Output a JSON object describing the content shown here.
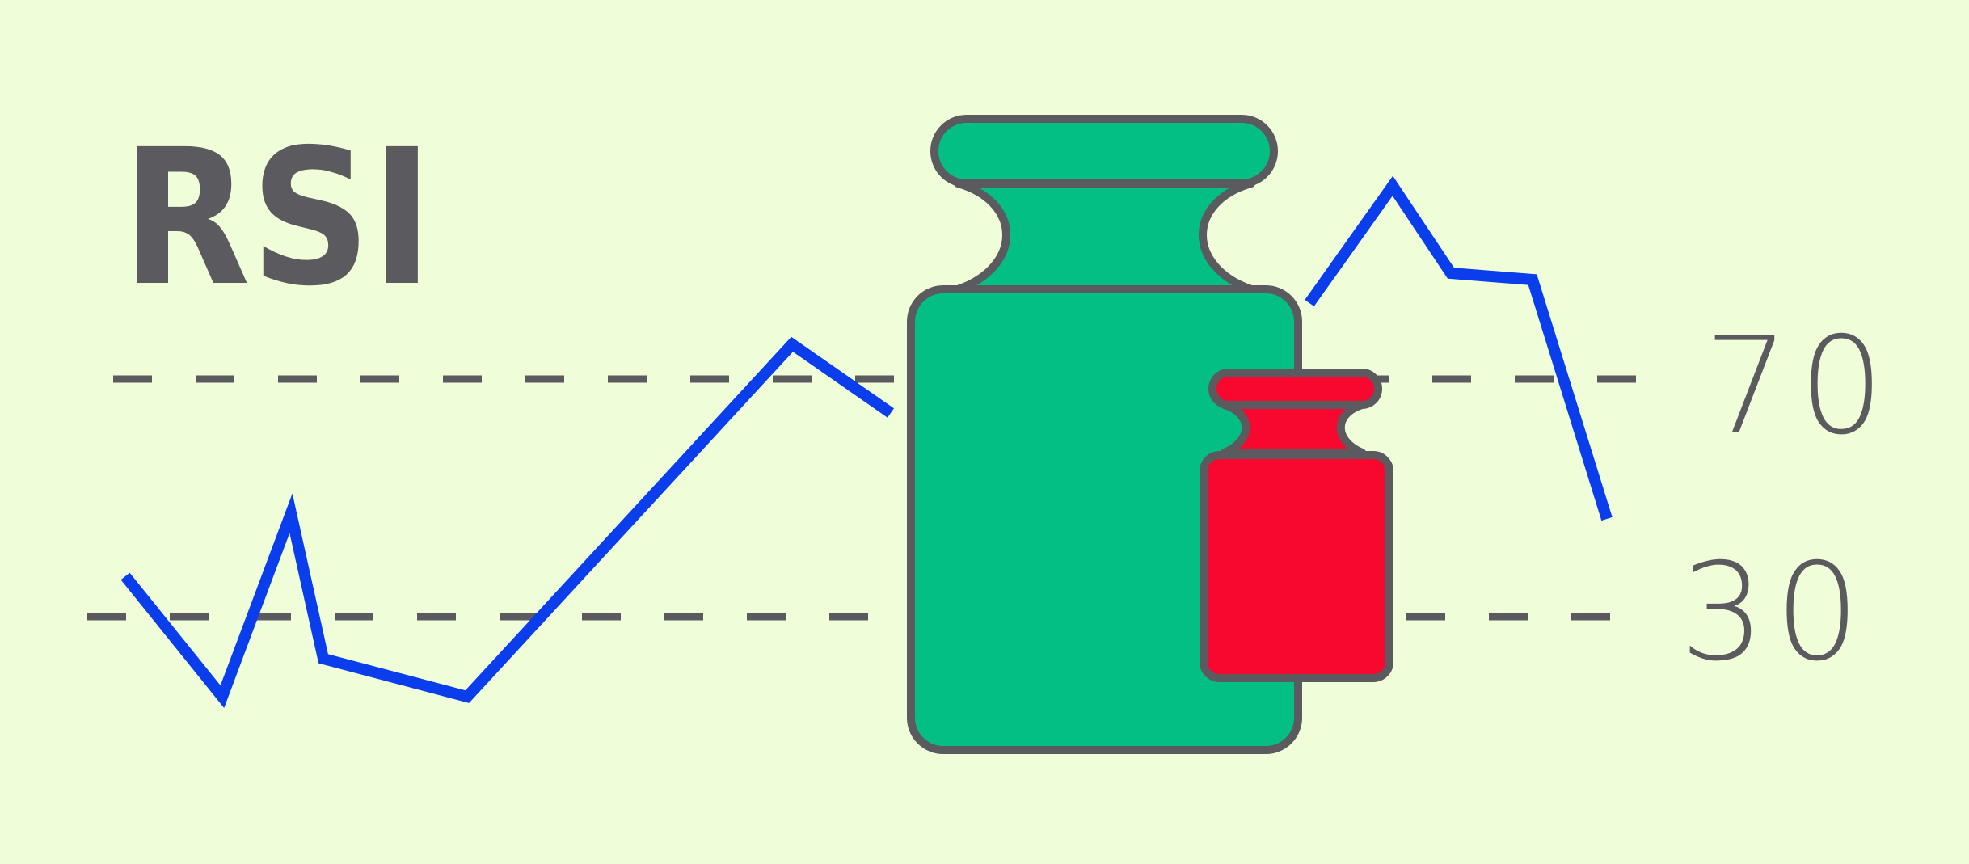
{
  "title": "RSI",
  "levels": {
    "upper": "70",
    "lower": "30"
  },
  "colors": {
    "background": "#EFFED8",
    "line": "#0A3DEB",
    "text": "#5B5A5E",
    "dash": "#5B5A5E",
    "outline": "#5B5A5E",
    "big_weight": "#03BF84",
    "small_weight": "#F8072E"
  },
  "icons": [
    "big-weight-icon",
    "small-weight-icon"
  ]
}
